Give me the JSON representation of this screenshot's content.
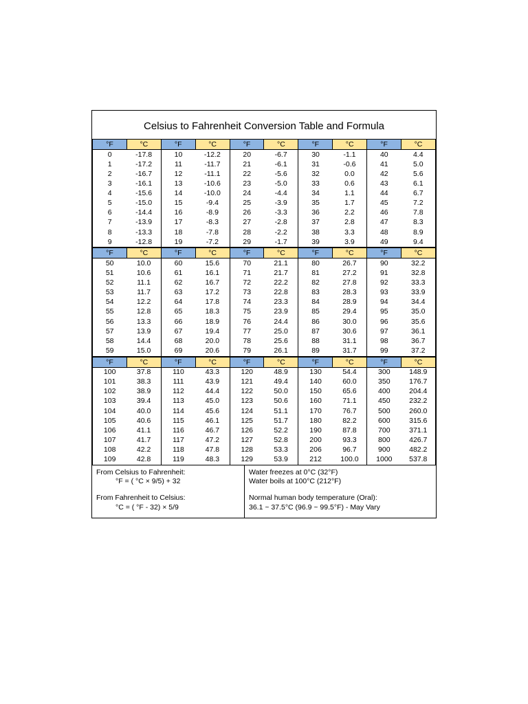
{
  "title": "Celsius to Fahrenheit Conversion Table and Formula",
  "colors": {
    "header_f_bg": "#8db4e2",
    "header_c_bg": "#ffe699",
    "border": "#000000",
    "background": "#ffffff"
  },
  "typography": {
    "title_fontsize": 15,
    "body_fontsize": 10.5,
    "font_family": "Arial"
  },
  "header_labels": {
    "f": "°F",
    "c": "°C"
  },
  "blocks": [
    {
      "columns": [
        [
          {
            "f": 0,
            "c": "-17.8"
          },
          {
            "f": 1,
            "c": "-17.2"
          },
          {
            "f": 2,
            "c": "-16.7"
          },
          {
            "f": 3,
            "c": "-16.1"
          },
          {
            "f": 4,
            "c": "-15.6"
          },
          {
            "f": 5,
            "c": "-15.0"
          },
          {
            "f": 6,
            "c": "-14.4"
          },
          {
            "f": 7,
            "c": "-13.9"
          },
          {
            "f": 8,
            "c": "-13.3"
          },
          {
            "f": 9,
            "c": "-12.8"
          }
        ],
        [
          {
            "f": 10,
            "c": "-12.2"
          },
          {
            "f": 11,
            "c": "-11.7"
          },
          {
            "f": 12,
            "c": "-11.1"
          },
          {
            "f": 13,
            "c": "-10.6"
          },
          {
            "f": 14,
            "c": "-10.0"
          },
          {
            "f": 15,
            "c": "-9.4"
          },
          {
            "f": 16,
            "c": "-8.9"
          },
          {
            "f": 17,
            "c": "-8.3"
          },
          {
            "f": 18,
            "c": "-7.8"
          },
          {
            "f": 19,
            "c": "-7.2"
          }
        ],
        [
          {
            "f": 20,
            "c": "-6.7"
          },
          {
            "f": 21,
            "c": "-6.1"
          },
          {
            "f": 22,
            "c": "-5.6"
          },
          {
            "f": 23,
            "c": "-5.0"
          },
          {
            "f": 24,
            "c": "-4.4"
          },
          {
            "f": 25,
            "c": "-3.9"
          },
          {
            "f": 26,
            "c": "-3.3"
          },
          {
            "f": 27,
            "c": "-2.8"
          },
          {
            "f": 28,
            "c": "-2.2"
          },
          {
            "f": 29,
            "c": "-1.7"
          }
        ],
        [
          {
            "f": 30,
            "c": "-1.1"
          },
          {
            "f": 31,
            "c": "-0.6"
          },
          {
            "f": 32,
            "c": "0.0"
          },
          {
            "f": 33,
            "c": "0.6"
          },
          {
            "f": 34,
            "c": "1.1"
          },
          {
            "f": 35,
            "c": "1.7"
          },
          {
            "f": 36,
            "c": "2.2"
          },
          {
            "f": 37,
            "c": "2.8"
          },
          {
            "f": 38,
            "c": "3.3"
          },
          {
            "f": 39,
            "c": "3.9"
          }
        ],
        [
          {
            "f": 40,
            "c": "4.4"
          },
          {
            "f": 41,
            "c": "5.0"
          },
          {
            "f": 42,
            "c": "5.6"
          },
          {
            "f": 43,
            "c": "6.1"
          },
          {
            "f": 44,
            "c": "6.7"
          },
          {
            "f": 45,
            "c": "7.2"
          },
          {
            "f": 46,
            "c": "7.8"
          },
          {
            "f": 47,
            "c": "8.3"
          },
          {
            "f": 48,
            "c": "8.9"
          },
          {
            "f": 49,
            "c": "9.4"
          }
        ]
      ]
    },
    {
      "columns": [
        [
          {
            "f": 50,
            "c": "10.0"
          },
          {
            "f": 51,
            "c": "10.6"
          },
          {
            "f": 52,
            "c": "11.1"
          },
          {
            "f": 53,
            "c": "11.7"
          },
          {
            "f": 54,
            "c": "12.2"
          },
          {
            "f": 55,
            "c": "12.8"
          },
          {
            "f": 56,
            "c": "13.3"
          },
          {
            "f": 57,
            "c": "13.9"
          },
          {
            "f": 58,
            "c": "14.4"
          },
          {
            "f": 59,
            "c": "15.0"
          }
        ],
        [
          {
            "f": 60,
            "c": "15.6"
          },
          {
            "f": 61,
            "c": "16.1"
          },
          {
            "f": 62,
            "c": "16.7"
          },
          {
            "f": 63,
            "c": "17.2"
          },
          {
            "f": 64,
            "c": "17.8"
          },
          {
            "f": 65,
            "c": "18.3"
          },
          {
            "f": 66,
            "c": "18.9"
          },
          {
            "f": 67,
            "c": "19.4"
          },
          {
            "f": 68,
            "c": "20.0"
          },
          {
            "f": 69,
            "c": "20.6"
          }
        ],
        [
          {
            "f": 70,
            "c": "21.1"
          },
          {
            "f": 71,
            "c": "21.7"
          },
          {
            "f": 72,
            "c": "22.2"
          },
          {
            "f": 73,
            "c": "22.8"
          },
          {
            "f": 74,
            "c": "23.3"
          },
          {
            "f": 75,
            "c": "23.9"
          },
          {
            "f": 76,
            "c": "24.4"
          },
          {
            "f": 77,
            "c": "25.0"
          },
          {
            "f": 78,
            "c": "25.6"
          },
          {
            "f": 79,
            "c": "26.1"
          }
        ],
        [
          {
            "f": 80,
            "c": "26.7"
          },
          {
            "f": 81,
            "c": "27.2"
          },
          {
            "f": 82,
            "c": "27.8"
          },
          {
            "f": 83,
            "c": "28.3"
          },
          {
            "f": 84,
            "c": "28.9"
          },
          {
            "f": 85,
            "c": "29.4"
          },
          {
            "f": 86,
            "c": "30.0"
          },
          {
            "f": 87,
            "c": "30.6"
          },
          {
            "f": 88,
            "c": "31.1"
          },
          {
            "f": 89,
            "c": "31.7"
          }
        ],
        [
          {
            "f": 90,
            "c": "32.2"
          },
          {
            "f": 91,
            "c": "32.8"
          },
          {
            "f": 92,
            "c": "33.3"
          },
          {
            "f": 93,
            "c": "33.9"
          },
          {
            "f": 94,
            "c": "34.4"
          },
          {
            "f": 95,
            "c": "35.0"
          },
          {
            "f": 96,
            "c": "35.6"
          },
          {
            "f": 97,
            "c": "36.1"
          },
          {
            "f": 98,
            "c": "36.7"
          },
          {
            "f": 99,
            "c": "37.2"
          }
        ]
      ]
    },
    {
      "columns": [
        [
          {
            "f": 100,
            "c": "37.8"
          },
          {
            "f": 101,
            "c": "38.3"
          },
          {
            "f": 102,
            "c": "38.9"
          },
          {
            "f": 103,
            "c": "39.4"
          },
          {
            "f": 104,
            "c": "40.0"
          },
          {
            "f": 105,
            "c": "40.6"
          },
          {
            "f": 106,
            "c": "41.1"
          },
          {
            "f": 107,
            "c": "41.7"
          },
          {
            "f": 108,
            "c": "42.2"
          },
          {
            "f": 109,
            "c": "42.8"
          }
        ],
        [
          {
            "f": 110,
            "c": "43.3"
          },
          {
            "f": 111,
            "c": "43.9"
          },
          {
            "f": 112,
            "c": "44.4"
          },
          {
            "f": 113,
            "c": "45.0"
          },
          {
            "f": 114,
            "c": "45.6"
          },
          {
            "f": 115,
            "c": "46.1"
          },
          {
            "f": 116,
            "c": "46.7"
          },
          {
            "f": 117,
            "c": "47.2"
          },
          {
            "f": 118,
            "c": "47.8"
          },
          {
            "f": 119,
            "c": "48.3"
          }
        ],
        [
          {
            "f": 120,
            "c": "48.9"
          },
          {
            "f": 121,
            "c": "49.4"
          },
          {
            "f": 122,
            "c": "50.0"
          },
          {
            "f": 123,
            "c": "50.6"
          },
          {
            "f": 124,
            "c": "51.1"
          },
          {
            "f": 125,
            "c": "51.7"
          },
          {
            "f": 126,
            "c": "52.2"
          },
          {
            "f": 127,
            "c": "52.8"
          },
          {
            "f": 128,
            "c": "53.3"
          },
          {
            "f": 129,
            "c": "53.9"
          }
        ],
        [
          {
            "f": 130,
            "c": "54.4"
          },
          {
            "f": 140,
            "c": "60.0"
          },
          {
            "f": 150,
            "c": "65.6"
          },
          {
            "f": 160,
            "c": "71.1"
          },
          {
            "f": 170,
            "c": "76.7"
          },
          {
            "f": 180,
            "c": "82.2"
          },
          {
            "f": 190,
            "c": "87.8"
          },
          {
            "f": 200,
            "c": "93.3"
          },
          {
            "f": 206,
            "c": "96.7"
          },
          {
            "f": 212,
            "c": "100.0"
          }
        ],
        [
          {
            "f": 300,
            "c": "148.9"
          },
          {
            "f": 350,
            "c": "176.7"
          },
          {
            "f": 400,
            "c": "204.4"
          },
          {
            "f": 450,
            "c": "232.2"
          },
          {
            "f": 500,
            "c": "260.0"
          },
          {
            "f": 600,
            "c": "315.6"
          },
          {
            "f": 700,
            "c": "371.1"
          },
          {
            "f": 800,
            "c": "426.7"
          },
          {
            "f": 900,
            "c": "482.2"
          },
          {
            "f": 1000,
            "c": "537.8"
          }
        ]
      ]
    }
  ],
  "footer": {
    "left": {
      "line1": "From Celsius to Fahrenheit:",
      "line2": "°F =  ( °C × 9/5) + 32",
      "line3": "From Fahrenheit to Celsius:",
      "line4": "°C =  ( °F - 32) × 5/9"
    },
    "right": {
      "line1": "Water freezes at 0°C (32°F)",
      "line2": "Water boils at 100°C (212°F)",
      "line3": "Normal human body temperature (Oral):",
      "line4": " 36.1 ~ 37.5°C (96.9 ~ 99.5°F) - May Vary"
    }
  }
}
